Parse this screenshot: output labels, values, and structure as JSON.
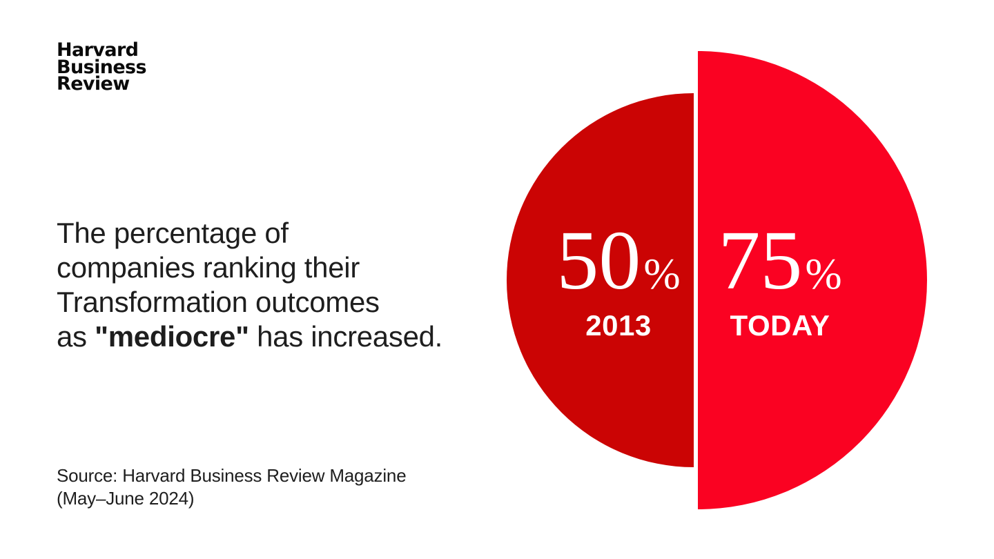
{
  "logo": {
    "lines": [
      "Harvard",
      "Business",
      "Review"
    ]
  },
  "headline": {
    "lines": [
      "The percentage of",
      "companies ranking their",
      "Transformation outcomes"
    ],
    "last_line": {
      "pre": "as ",
      "bold": "\"mediocre\"",
      "post": " has increased."
    }
  },
  "source": {
    "line1": "Source: Harvard Business Review Magazine",
    "line2": "(May–June 2024)"
  },
  "chart_data": {
    "type": "pie",
    "variant": "proportional-area-semicircles",
    "title": "The percentage of companies ranking their Transformation outcomes as \"mediocre\" has increased.",
    "categories": [
      "2013",
      "TODAY"
    ],
    "values": [
      50,
      75
    ],
    "unit": "%",
    "legend": "none",
    "text_color": "#ffffff",
    "series": [
      {
        "name": "2013",
        "value": 50,
        "display": "50",
        "suffix": "%",
        "label": "2013",
        "color": "#CB0404",
        "side": "left"
      },
      {
        "name": "TODAY",
        "value": 75,
        "display": "75",
        "suffix": "%",
        "label": "TODAY",
        "color": "#FA0222",
        "side": "right"
      }
    ]
  }
}
